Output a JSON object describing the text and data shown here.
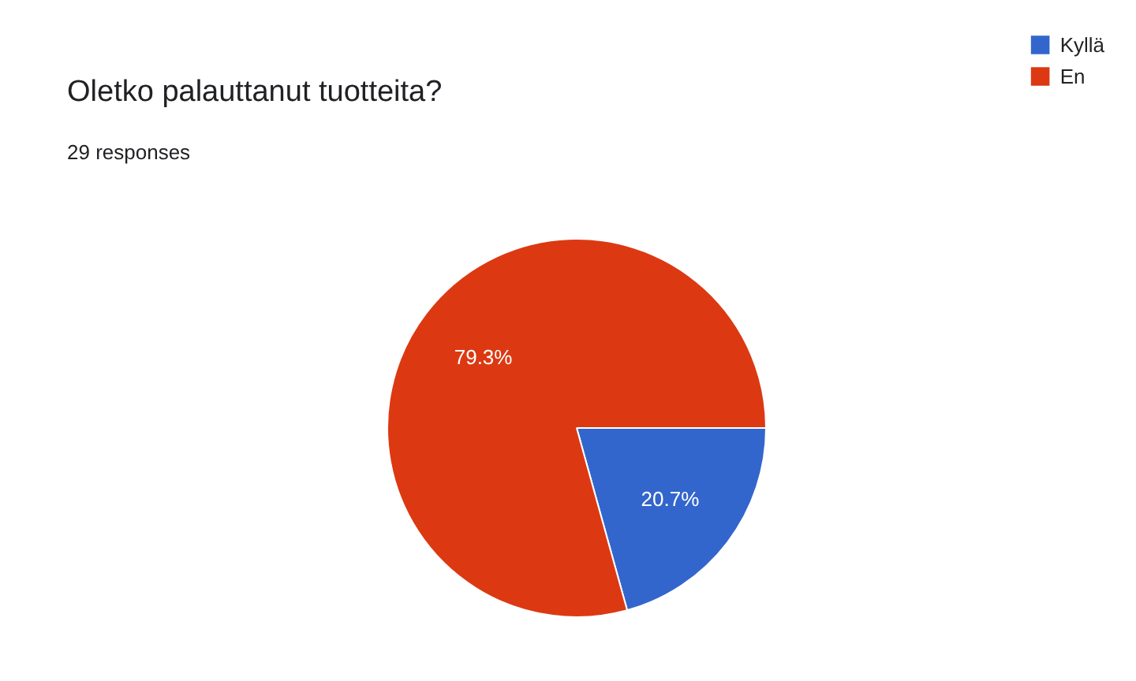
{
  "chart_data": {
    "type": "pie",
    "title": "Oletko palauttanut tuotteita?",
    "subtitle": "29 responses",
    "categories": [
      "Kyllä",
      "En"
    ],
    "values": [
      20.7,
      79.3
    ],
    "value_labels": [
      "20.7%",
      "79.3%"
    ],
    "colors": [
      "#3366cc",
      "#dc3912"
    ],
    "legend": "top right"
  }
}
